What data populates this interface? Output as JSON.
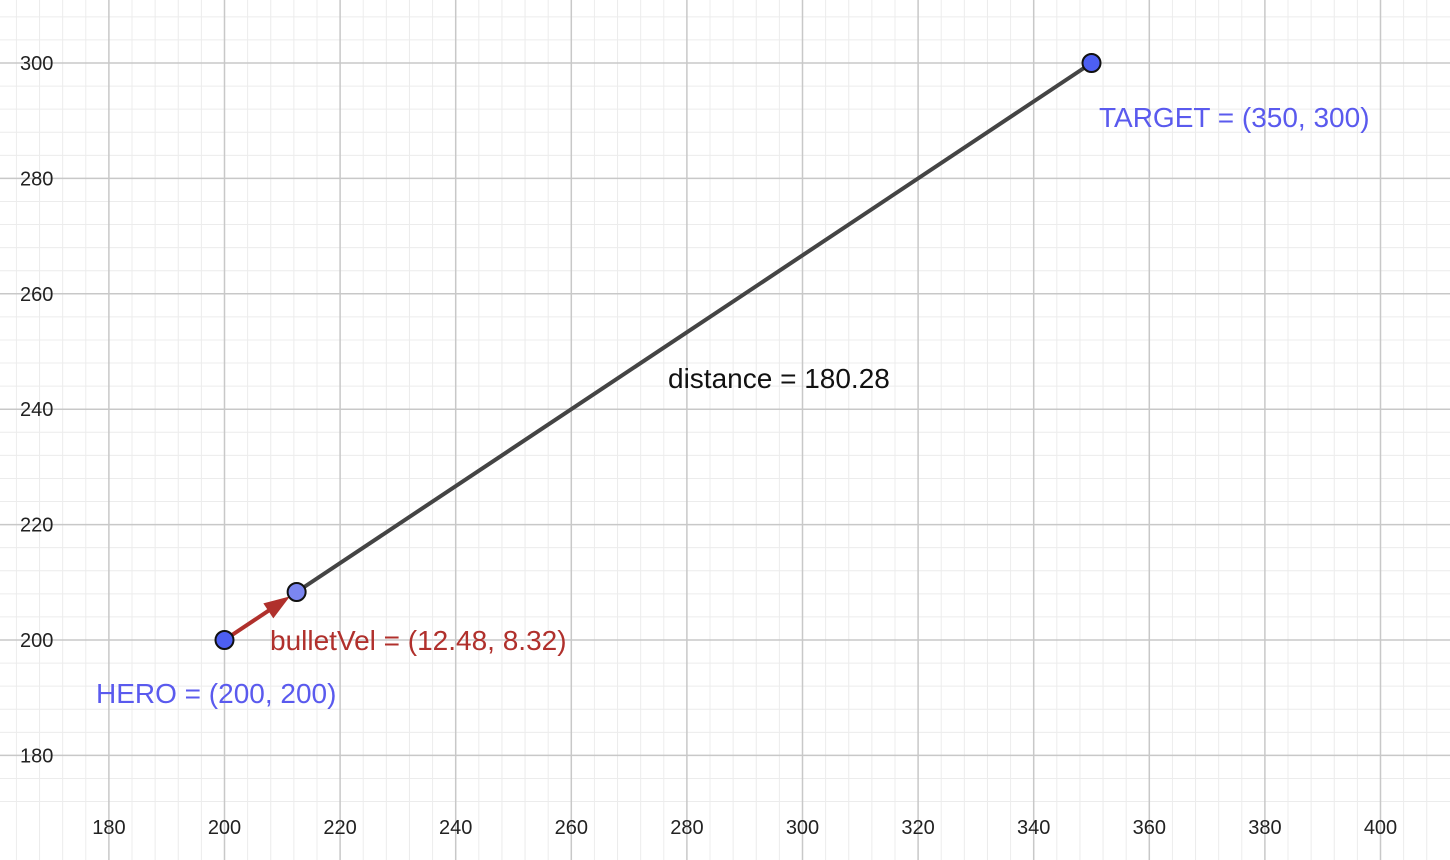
{
  "graph": {
    "x_axis": {
      "range": [
        160,
        410
      ],
      "major_step": 20,
      "minor_step": 4,
      "tick_labels": [
        "180",
        "200",
        "220",
        "240",
        "260",
        "280",
        "300",
        "320",
        "340",
        "360",
        "380",
        "400"
      ]
    },
    "y_axis": {
      "range": [
        172,
        311
      ],
      "major_step": 20,
      "minor_step": 4,
      "tick_labels": [
        "180",
        "200",
        "220",
        "240",
        "260",
        "280",
        "300"
      ]
    },
    "grid": true,
    "colors": {
      "point_fill": "#4d5ff2",
      "point_fill_light": "#7b86f0",
      "point_label": "#5a5aee",
      "vector": "#b0302c",
      "segment": "#444444",
      "major_grid": "#c8c8c8",
      "minor_grid": "#ececec",
      "text": "#111111"
    }
  },
  "points": [
    {
      "id": "hero",
      "x": 200,
      "y": 200,
      "label": "HERO = (200, 200)"
    },
    {
      "id": "bullet-tip",
      "x": 212.48,
      "y": 208.32,
      "label": ""
    },
    {
      "id": "target",
      "x": 350,
      "y": 300,
      "label": "TARGET = (350, 300)"
    }
  ],
  "segment": {
    "from": "bullet-tip",
    "to": "target"
  },
  "vector": {
    "from": "hero",
    "to": "bullet-tip",
    "label": "bulletVel = (12.48, 8.32)"
  },
  "distance_label": "distance = 180.28"
}
